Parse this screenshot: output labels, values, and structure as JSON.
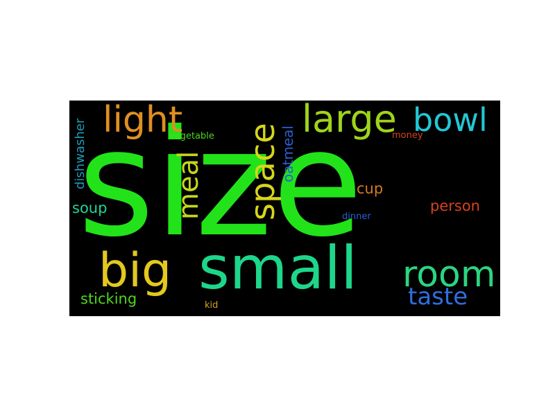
{
  "words": [
    {
      "id": "size",
      "text": "size",
      "color": "#22e31a"
    },
    {
      "id": "small",
      "text": "small",
      "color": "#1ed68a"
    },
    {
      "id": "big",
      "text": "big",
      "color": "#e3c81f"
    },
    {
      "id": "room",
      "text": "room",
      "color": "#2ad67f"
    },
    {
      "id": "light",
      "text": "light",
      "color": "#e08f22"
    },
    {
      "id": "large",
      "text": "large",
      "color": "#9ed51a"
    },
    {
      "id": "bowl",
      "text": "bowl",
      "color": "#22c8d6"
    },
    {
      "id": "space",
      "text": "space",
      "color": "#d6d61a"
    },
    {
      "id": "meal",
      "text": "meal",
      "color": "#c6d61a"
    },
    {
      "id": "taste",
      "text": "taste",
      "color": "#2f6ee0"
    },
    {
      "id": "dishwasher",
      "text": "dishwasher",
      "color": "#1e9bb8"
    },
    {
      "id": "oatmeal",
      "text": "oatmeal",
      "color": "#2a5fd6"
    },
    {
      "id": "cup",
      "text": "cup",
      "color": "#d67a1e"
    },
    {
      "id": "person",
      "text": "person",
      "color": "#d6431e"
    },
    {
      "id": "soup",
      "text": "soup",
      "color": "#1ed69b"
    },
    {
      "id": "sticking",
      "text": "sticking",
      "color": "#4fd61e"
    },
    {
      "id": "vegetable",
      "text": "vegetable",
      "color": "#4fd61e"
    },
    {
      "id": "money",
      "text": "money",
      "color": "#d6431e"
    },
    {
      "id": "dinner",
      "text": "dinner",
      "color": "#2a5fd6"
    },
    {
      "id": "kid",
      "text": "kid",
      "color": "#d6a41e"
    }
  ]
}
